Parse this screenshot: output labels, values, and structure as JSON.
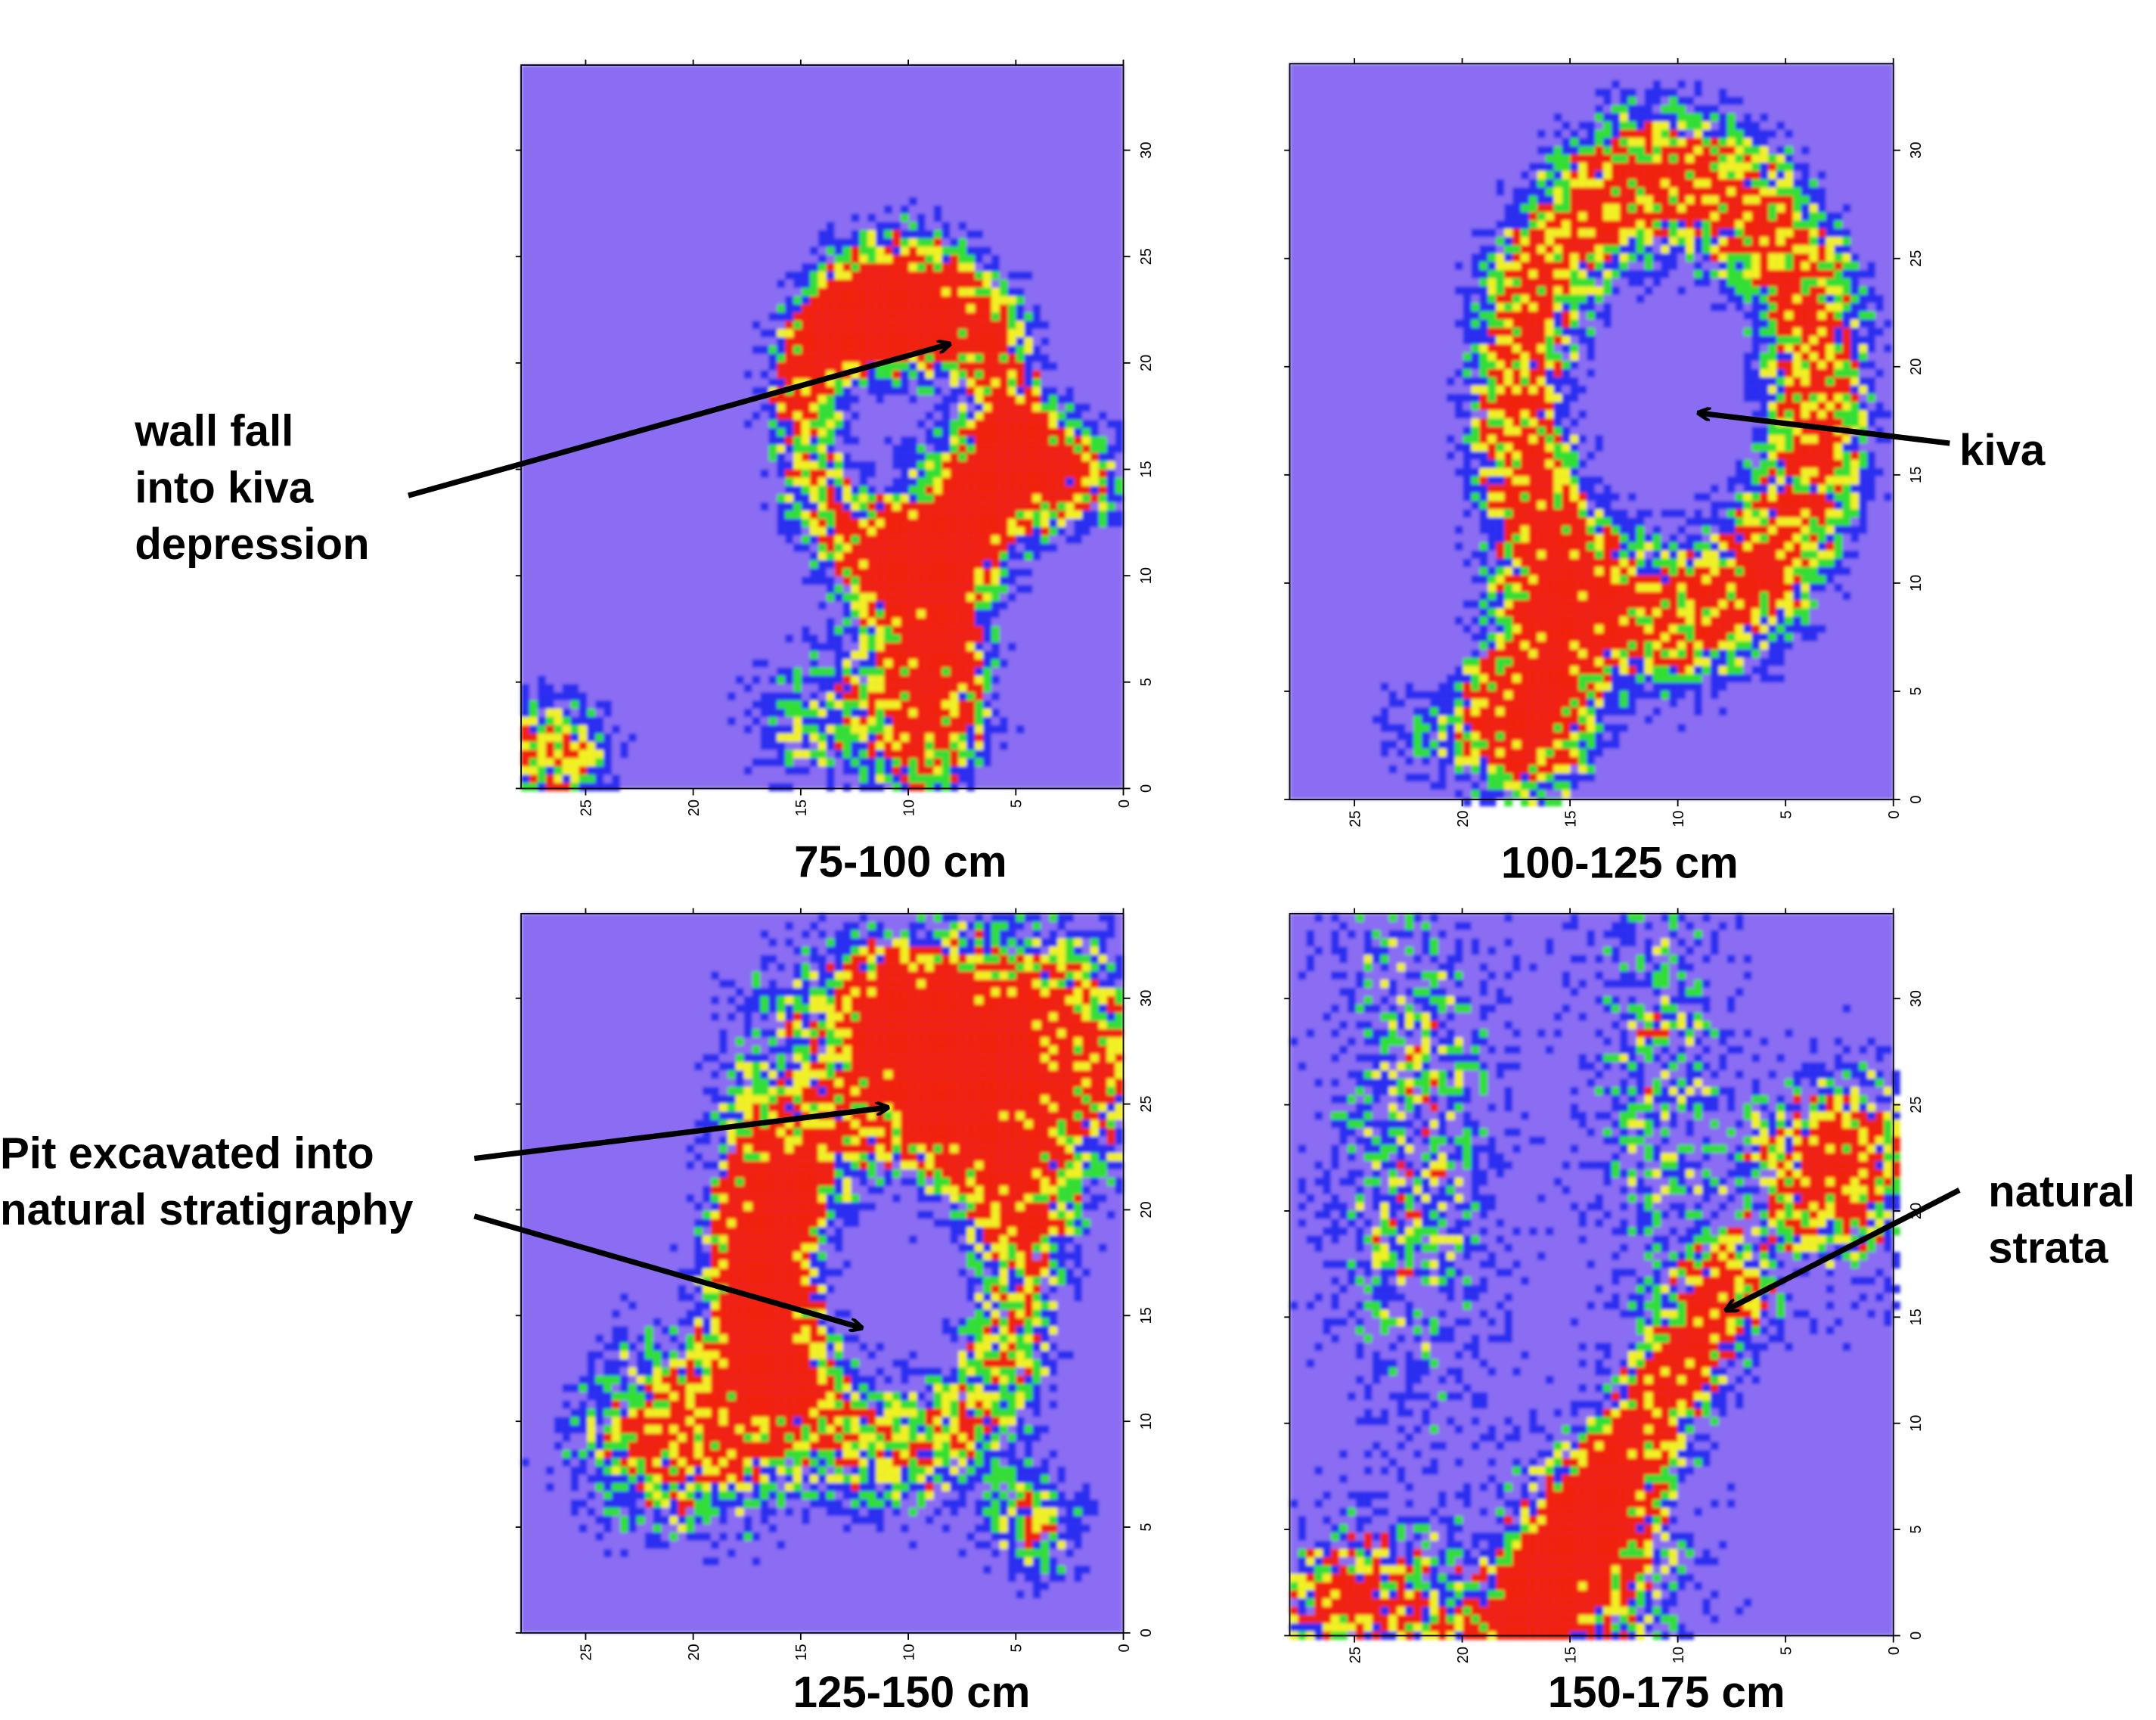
{
  "panels": [
    {
      "title": "75-100 cm",
      "annotation": [
        "wall fall",
        "into kiva",
        "depression"
      ],
      "xlim": [
        28,
        0
      ],
      "ylim": [
        0,
        34
      ],
      "xticks": [
        25,
        20,
        15,
        10,
        5,
        0
      ],
      "yticks": [
        0,
        5,
        10,
        15,
        20,
        25,
        30
      ]
    },
    {
      "title": "100-125 cm",
      "annotation": [
        "kiva"
      ],
      "xlim": [
        28,
        0
      ],
      "ylim": [
        0,
        34
      ],
      "xticks": [
        25,
        20,
        15,
        10,
        5,
        0
      ],
      "yticks": [
        0,
        5,
        10,
        15,
        20,
        25,
        30
      ]
    },
    {
      "title": "125-150 cm",
      "annotation": [
        "Pit excavated into",
        "natural stratigraphy"
      ],
      "xlim": [
        28,
        0
      ],
      "ylim": [
        0,
        34
      ],
      "xticks": [
        25,
        20,
        15,
        10,
        5,
        0
      ],
      "yticks": [
        0,
        5,
        10,
        15,
        20,
        25,
        30
      ]
    },
    {
      "title": "150-175 cm",
      "annotation": [
        "natural",
        "strata"
      ],
      "xlim": [
        28,
        0
      ],
      "ylim": [
        0,
        34
      ],
      "xticks": [
        25,
        20,
        15,
        10,
        5,
        0
      ],
      "yticks": [
        0,
        5,
        10,
        15,
        20,
        25,
        30
      ]
    }
  ]
}
